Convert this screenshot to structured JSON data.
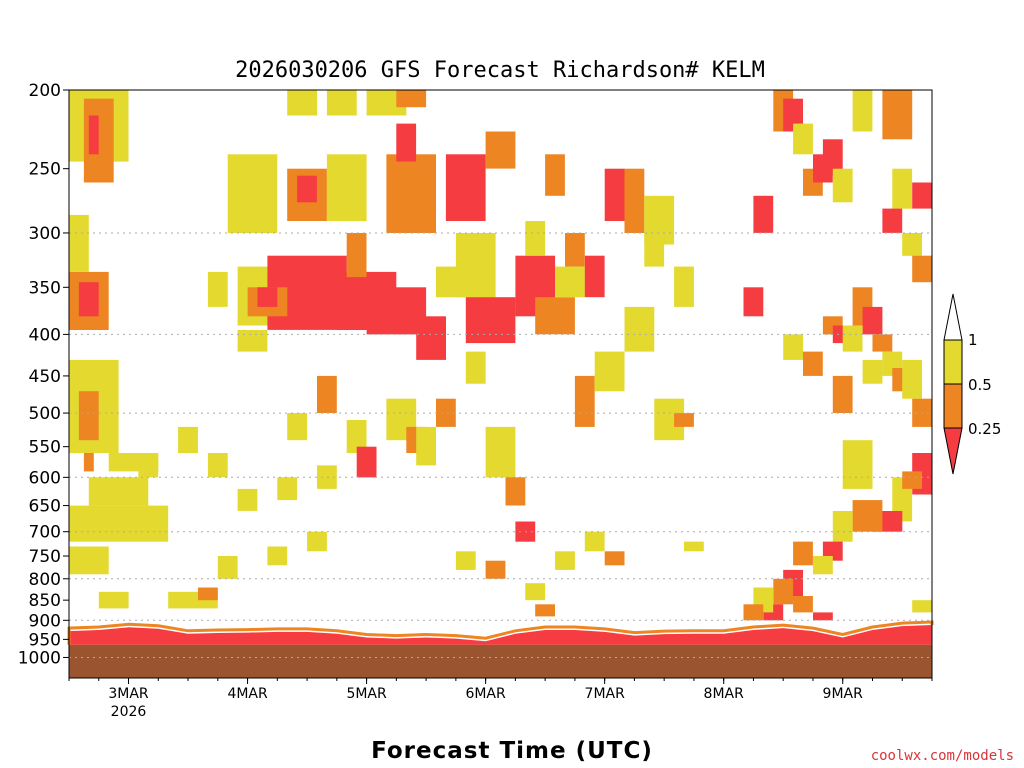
{
  "chart_data": {
    "type": "heatmap",
    "title": "2026030206 GFS Forecast Richardson# KELM",
    "xlabel": "Forecast Time (UTC)",
    "ylabel": "",
    "credit": "coolwx.com/models",
    "y_scale": "log",
    "y_ticks": [
      200,
      250,
      300,
      350,
      400,
      450,
      500,
      550,
      600,
      650,
      700,
      750,
      800,
      850,
      900,
      950,
      1000
    ],
    "y_ticks_text": [
      "200",
      "250",
      "300",
      "350",
      "400",
      "450",
      "500",
      "550",
      "600",
      "650",
      "700",
      "750",
      "800",
      "850",
      "900",
      "950",
      "1000"
    ],
    "ylim": [
      1060,
      200
    ],
    "gridlines_at": [
      300,
      400,
      500,
      600,
      700,
      800,
      900,
      1000
    ],
    "x_start_hour": 6,
    "x_end_hour": 180,
    "x_ticks": [
      {
        "label": "3MAR",
        "sub": "2026"
      },
      {
        "label": "4MAR",
        "sub": ""
      },
      {
        "label": "5MAR",
        "sub": ""
      },
      {
        "label": "6MAR",
        "sub": ""
      },
      {
        "label": "7MAR",
        "sub": ""
      },
      {
        "label": "8MAR",
        "sub": ""
      },
      {
        "label": "9MAR",
        "sub": ""
      }
    ],
    "legend": {
      "labels": [
        "1",
        "0.5",
        "0.25"
      ],
      "bins": [
        {
          "range": "> 1",
          "color": "#ffffff"
        },
        {
          "range": "0.5 - 1",
          "color": "#e3d92f"
        },
        {
          "range": "0.25 - 0.5",
          "color": "#ee8523"
        },
        {
          "range": "< 0.25",
          "color": "#f53c40"
        }
      ]
    },
    "colors": {
      "yellow": "#e3d92f",
      "orange": "#ee8523",
      "red": "#f53c40",
      "ground": "#9a5530"
    },
    "ground_level_hpa": 965,
    "surface_layer": [
      {
        "h": 6,
        "top": 928
      },
      {
        "h": 12,
        "top": 925
      },
      {
        "h": 18,
        "top": 918
      },
      {
        "h": 24,
        "top": 922
      },
      {
        "h": 30,
        "top": 935
      },
      {
        "h": 36,
        "top": 933
      },
      {
        "h": 42,
        "top": 932
      },
      {
        "h": 48,
        "top": 930
      },
      {
        "h": 54,
        "top": 930
      },
      {
        "h": 60,
        "top": 935
      },
      {
        "h": 66,
        "top": 945
      },
      {
        "h": 72,
        "top": 948
      },
      {
        "h": 78,
        "top": 945
      },
      {
        "h": 84,
        "top": 948
      },
      {
        "h": 90,
        "top": 955
      },
      {
        "h": 96,
        "top": 935
      },
      {
        "h": 102,
        "top": 925
      },
      {
        "h": 108,
        "top": 925
      },
      {
        "h": 114,
        "top": 930
      },
      {
        "h": 120,
        "top": 940
      },
      {
        "h": 126,
        "top": 936
      },
      {
        "h": 132,
        "top": 935
      },
      {
        "h": 138,
        "top": 935
      },
      {
        "h": 144,
        "top": 925
      },
      {
        "h": 150,
        "top": 920
      },
      {
        "h": 156,
        "top": 928
      },
      {
        "h": 162,
        "top": 945
      },
      {
        "h": 168,
        "top": 925
      },
      {
        "h": 174,
        "top": 915
      },
      {
        "h": 180,
        "top": 912
      }
    ],
    "cells": [
      [
        6,
        18,
        200,
        245,
        "y"
      ],
      [
        9,
        15,
        205,
        260,
        "o"
      ],
      [
        10,
        12,
        215,
        240,
        "r"
      ],
      [
        6,
        14,
        335,
        395,
        "o"
      ],
      [
        8,
        12,
        345,
        380,
        "r"
      ],
      [
        6,
        10,
        285,
        335,
        "y"
      ],
      [
        6,
        16,
        430,
        560,
        "y"
      ],
      [
        8,
        12,
        470,
        540,
        "o"
      ],
      [
        9,
        11,
        560,
        590,
        "o"
      ],
      [
        6,
        26,
        650,
        720,
        "y"
      ],
      [
        10,
        22,
        600,
        650,
        "y"
      ],
      [
        14,
        24,
        560,
        590,
        "y"
      ],
      [
        6,
        14,
        730,
        790,
        "y"
      ],
      [
        12,
        18,
        830,
        870,
        "y"
      ],
      [
        20,
        24,
        570,
        600,
        "y"
      ],
      [
        26,
        36,
        830,
        870,
        "y"
      ],
      [
        32,
        36,
        820,
        850,
        "o"
      ],
      [
        34,
        38,
        335,
        370,
        "y"
      ],
      [
        38,
        48,
        240,
        300,
        "y"
      ],
      [
        40,
        52,
        330,
        390,
        "y"
      ],
      [
        46,
        62,
        320,
        395,
        "r"
      ],
      [
        42,
        50,
        350,
        380,
        "o"
      ],
      [
        44,
        48,
        350,
        370,
        "r"
      ],
      [
        40,
        46,
        395,
        420,
        "y"
      ],
      [
        50,
        58,
        250,
        290,
        "o"
      ],
      [
        52,
        56,
        255,
        275,
        "r"
      ],
      [
        58,
        66,
        240,
        290,
        "y"
      ],
      [
        60,
        72,
        335,
        395,
        "r"
      ],
      [
        62,
        66,
        300,
        340,
        "o"
      ],
      [
        66,
        78,
        350,
        400,
        "r"
      ],
      [
        70,
        80,
        240,
        300,
        "o"
      ],
      [
        72,
        76,
        220,
        245,
        "r"
      ],
      [
        76,
        82,
        380,
        430,
        "r"
      ],
      [
        66,
        74,
        200,
        215,
        "y"
      ],
      [
        72,
        78,
        200,
        210,
        "o"
      ],
      [
        58,
        64,
        200,
        215,
        "y"
      ],
      [
        50,
        56,
        200,
        215,
        "y"
      ],
      [
        82,
        90,
        240,
        290,
        "r"
      ],
      [
        84,
        92,
        300,
        360,
        "y"
      ],
      [
        86,
        96,
        360,
        410,
        "r"
      ],
      [
        80,
        86,
        330,
        360,
        "y"
      ],
      [
        90,
        96,
        225,
        250,
        "o"
      ],
      [
        96,
        104,
        320,
        380,
        "r"
      ],
      [
        98,
        102,
        290,
        320,
        "y"
      ],
      [
        100,
        108,
        360,
        400,
        "o"
      ],
      [
        104,
        110,
        330,
        360,
        "y"
      ],
      [
        108,
        112,
        450,
        520,
        "o"
      ],
      [
        112,
        118,
        420,
        470,
        "y"
      ],
      [
        114,
        118,
        250,
        290,
        "r"
      ],
      [
        118,
        122,
        250,
        300,
        "o"
      ],
      [
        122,
        128,
        270,
        310,
        "y"
      ],
      [
        90,
        96,
        520,
        600,
        "y"
      ],
      [
        94,
        98,
        600,
        650,
        "o"
      ],
      [
        96,
        100,
        680,
        720,
        "r"
      ],
      [
        70,
        76,
        480,
        540,
        "y"
      ],
      [
        74,
        78,
        520,
        560,
        "o"
      ],
      [
        62,
        66,
        510,
        560,
        "y"
      ],
      [
        56,
        60,
        450,
        500,
        "o"
      ],
      [
        50,
        54,
        500,
        540,
        "y"
      ],
      [
        118,
        124,
        370,
        420,
        "y"
      ],
      [
        124,
        130,
        480,
        540,
        "y"
      ],
      [
        128,
        132,
        500,
        520,
        "o"
      ],
      [
        130,
        134,
        720,
        740,
        "y"
      ],
      [
        142,
        146,
        350,
        380,
        "r"
      ],
      [
        144,
        148,
        270,
        300,
        "r"
      ],
      [
        148,
        152,
        200,
        225,
        "o"
      ],
      [
        150,
        154,
        205,
        225,
        "r"
      ],
      [
        152,
        156,
        220,
        240,
        "y"
      ],
      [
        154,
        158,
        250,
        270,
        "o"
      ],
      [
        156,
        160,
        240,
        260,
        "r"
      ],
      [
        158,
        162,
        230,
        255,
        "r"
      ],
      [
        160,
        164,
        250,
        275,
        "y"
      ],
      [
        164,
        168,
        200,
        225,
        "y"
      ],
      [
        170,
        176,
        200,
        230,
        "o"
      ],
      [
        172,
        176,
        250,
        280,
        "y"
      ],
      [
        176,
        180,
        260,
        280,
        "r"
      ],
      [
        170,
        174,
        280,
        300,
        "r"
      ],
      [
        174,
        178,
        300,
        320,
        "y"
      ],
      [
        176,
        180,
        320,
        345,
        "o"
      ],
      [
        158,
        162,
        380,
        400,
        "o"
      ],
      [
        160,
        164,
        390,
        410,
        "r"
      ],
      [
        164,
        168,
        350,
        390,
        "o"
      ],
      [
        166,
        170,
        370,
        400,
        "r"
      ],
      [
        168,
        172,
        400,
        420,
        "o"
      ],
      [
        170,
        174,
        420,
        450,
        "y"
      ],
      [
        172,
        176,
        440,
        470,
        "o"
      ],
      [
        174,
        178,
        430,
        480,
        "y"
      ],
      [
        176,
        180,
        480,
        520,
        "o"
      ],
      [
        176,
        180,
        560,
        630,
        "r"
      ],
      [
        172,
        176,
        600,
        680,
        "y"
      ],
      [
        168,
        174,
        660,
        700,
        "r"
      ],
      [
        164,
        170,
        640,
        700,
        "o"
      ],
      [
        160,
        164,
        660,
        720,
        "y"
      ],
      [
        158,
        162,
        720,
        760,
        "r"
      ],
      [
        156,
        160,
        750,
        790,
        "y"
      ],
      [
        152,
        156,
        720,
        770,
        "o"
      ],
      [
        150,
        154,
        780,
        850,
        "r"
      ],
      [
        148,
        152,
        800,
        860,
        "o"
      ],
      [
        146,
        150,
        860,
        900,
        "r"
      ],
      [
        144,
        148,
        820,
        880,
        "y"
      ],
      [
        142,
        146,
        860,
        900,
        "o"
      ],
      [
        152,
        156,
        840,
        880,
        "o"
      ],
      [
        156,
        160,
        880,
        900,
        "r"
      ],
      [
        162,
        168,
        540,
        620,
        "y"
      ],
      [
        160,
        164,
        450,
        500,
        "o"
      ],
      [
        166,
        170,
        430,
        460,
        "y"
      ],
      [
        174,
        178,
        590,
        620,
        "o"
      ],
      [
        176,
        180,
        850,
        880,
        "y"
      ],
      [
        162,
        166,
        390,
        420,
        "y"
      ],
      [
        150,
        154,
        400,
        430,
        "y"
      ],
      [
        154,
        158,
        420,
        450,
        "o"
      ],
      [
        122,
        126,
        300,
        330,
        "y"
      ],
      [
        128,
        132,
        330,
        370,
        "y"
      ],
      [
        110,
        114,
        320,
        360,
        "r"
      ],
      [
        106,
        110,
        300,
        330,
        "o"
      ],
      [
        102,
        106,
        240,
        270,
        "o"
      ],
      [
        86,
        90,
        420,
        460,
        "y"
      ],
      [
        80,
        84,
        480,
        520,
        "o"
      ],
      [
        76,
        80,
        520,
        580,
        "y"
      ],
      [
        64,
        68,
        550,
        600,
        "r"
      ],
      [
        56,
        60,
        580,
        620,
        "y"
      ],
      [
        48,
        52,
        600,
        640,
        "y"
      ],
      [
        40,
        44,
        620,
        660,
        "y"
      ],
      [
        34,
        38,
        560,
        600,
        "y"
      ],
      [
        28,
        32,
        520,
        560,
        "y"
      ],
      [
        104,
        108,
        740,
        780,
        "y"
      ],
      [
        98,
        102,
        810,
        850,
        "y"
      ],
      [
        100,
        104,
        860,
        890,
        "o"
      ],
      [
        110,
        114,
        700,
        740,
        "y"
      ],
      [
        114,
        118,
        740,
        770,
        "o"
      ],
      [
        84,
        88,
        740,
        780,
        "y"
      ],
      [
        90,
        94,
        760,
        800,
        "o"
      ],
      [
        54,
        58,
        700,
        740,
        "y"
      ],
      [
        46,
        50,
        730,
        770,
        "y"
      ],
      [
        36,
        40,
        750,
        800,
        "y"
      ]
    ]
  }
}
